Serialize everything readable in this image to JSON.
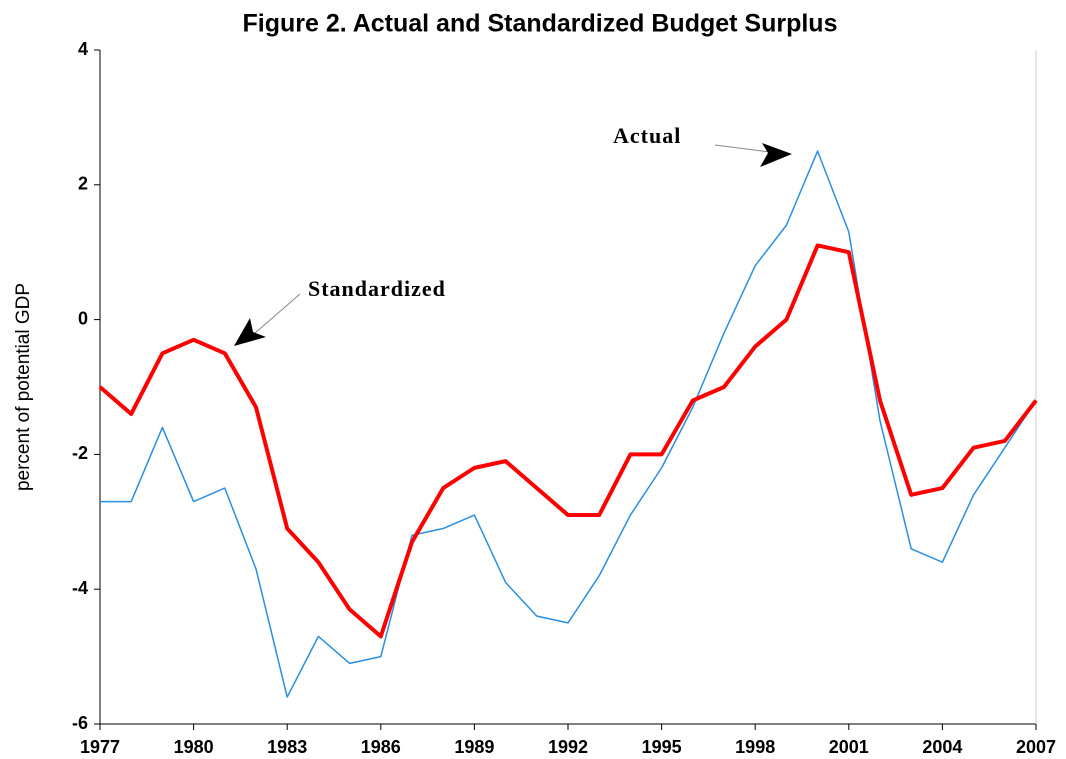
{
  "chart_data": {
    "type": "line",
    "title": "Figure 2. Actual and Standardized Budget Surplus",
    "y_label": "percent of potential GDP",
    "x": [
      1977,
      1978,
      1979,
      1980,
      1981,
      1982,
      1983,
      1984,
      1985,
      1986,
      1987,
      1988,
      1989,
      1990,
      1991,
      1992,
      1993,
      1994,
      1995,
      1996,
      1997,
      1998,
      1999,
      2000,
      2001,
      2002,
      2003,
      2004,
      2005,
      2006,
      2007
    ],
    "series": [
      {
        "name": "Actual",
        "color": "#2a8fe0",
        "values": [
          -2.7,
          -2.7,
          -1.6,
          -2.7,
          -2.5,
          -3.7,
          -5.6,
          -4.7,
          -5.1,
          -5.0,
          -3.2,
          -3.1,
          -2.9,
          -3.9,
          -4.4,
          -4.5,
          -3.8,
          -2.9,
          -2.2,
          -1.3,
          -0.2,
          0.8,
          1.4,
          2.5,
          1.3,
          -1.5,
          -3.4,
          -3.6,
          -2.6,
          -1.9,
          -1.2
        ]
      },
      {
        "name": "Standardized",
        "color": "#ff0000",
        "values": [
          -1.0,
          -1.4,
          -0.5,
          -0.3,
          -0.5,
          -1.3,
          -3.1,
          -3.6,
          -4.3,
          -4.7,
          -3.3,
          -2.5,
          -2.2,
          -2.1,
          -2.5,
          -2.9,
          -2.9,
          -2.0,
          -2.0,
          -1.2,
          -1.0,
          -0.4,
          0.0,
          1.1,
          1.0,
          -1.2,
          -2.6,
          -2.5,
          -1.9,
          -1.8,
          -1.2
        ]
      }
    ],
    "xlim": [
      1977,
      2007
    ],
    "xticks": [
      1977,
      1980,
      1983,
      1986,
      1989,
      1992,
      1995,
      1998,
      2001,
      2004,
      2007
    ],
    "ylim": [
      -6,
      4
    ],
    "yticks": [
      -6,
      -4,
      -2,
      0,
      2,
      4
    ],
    "grid": false
  }
}
